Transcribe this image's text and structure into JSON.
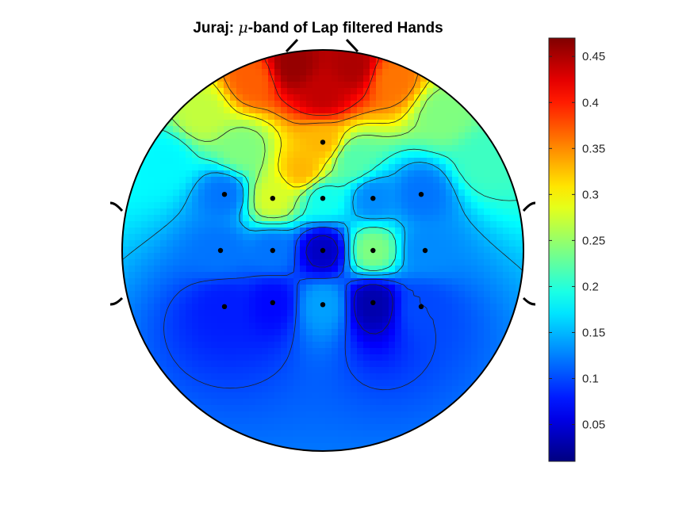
{
  "chart_data": {
    "type": "heatmap",
    "subtype": "eeg-topographic-map",
    "title": {
      "prefix": "Juraj: ",
      "symbol": "μ",
      "suffix": "-band of Lap filtered Hands"
    },
    "colormap": "jet",
    "color_range": [
      0.01,
      0.47
    ],
    "colorbar": {
      "ticks": [
        0.05,
        0.1,
        0.15,
        0.2,
        0.25,
        0.3,
        0.35,
        0.4,
        0.45
      ],
      "tick_labels": [
        "0.05",
        "0.1",
        "0.15",
        "0.2",
        "0.25",
        "0.3",
        "0.35",
        "0.4",
        "0.45"
      ]
    },
    "electrodes": [
      {
        "x": 0.0,
        "y": 0.54,
        "value": 0.33
      },
      {
        "x": -0.49,
        "y": 0.28,
        "value": 0.12
      },
      {
        "x": -0.25,
        "y": 0.26,
        "value": 0.28
      },
      {
        "x": 0.0,
        "y": 0.26,
        "value": 0.19
      },
      {
        "x": 0.25,
        "y": 0.26,
        "value": 0.13
      },
      {
        "x": 0.49,
        "y": 0.28,
        "value": 0.12
      },
      {
        "x": -0.51,
        "y": 0.0,
        "value": 0.12
      },
      {
        "x": -0.25,
        "y": 0.0,
        "value": 0.12
      },
      {
        "x": 0.0,
        "y": 0.0,
        "value": 0.04
      },
      {
        "x": 0.25,
        "y": 0.0,
        "value": 0.24
      },
      {
        "x": 0.51,
        "y": 0.0,
        "value": 0.13
      },
      {
        "x": -0.49,
        "y": -0.28,
        "value": 0.08
      },
      {
        "x": -0.25,
        "y": -0.26,
        "value": 0.07
      },
      {
        "x": 0.0,
        "y": -0.27,
        "value": 0.14
      },
      {
        "x": 0.25,
        "y": -0.26,
        "value": 0.03
      },
      {
        "x": 0.49,
        "y": -0.28,
        "value": 0.1
      }
    ],
    "frontal_region": [
      {
        "x": -0.15,
        "y": 0.92,
        "value": 0.46
      },
      {
        "x": 0.15,
        "y": 0.92,
        "value": 0.45
      },
      {
        "x": 0.0,
        "y": 0.78,
        "value": 0.44
      },
      {
        "x": -0.35,
        "y": 0.85,
        "value": 0.37
      },
      {
        "x": 0.35,
        "y": 0.85,
        "value": 0.36
      },
      {
        "x": -0.6,
        "y": 0.68,
        "value": 0.27
      },
      {
        "x": 0.6,
        "y": 0.68,
        "value": 0.24
      },
      {
        "x": -0.78,
        "y": 0.45,
        "value": 0.18
      },
      {
        "x": 0.8,
        "y": 0.45,
        "value": 0.21
      },
      {
        "x": -0.1,
        "y": 0.4,
        "value": 0.33
      },
      {
        "x": 0.15,
        "y": 0.45,
        "value": 0.22
      },
      {
        "x": -0.4,
        "y": 0.5,
        "value": 0.24
      }
    ],
    "contour_levels": [
      0.05,
      0.1,
      0.15,
      0.2,
      0.25,
      0.3,
      0.35,
      0.4
    ]
  }
}
